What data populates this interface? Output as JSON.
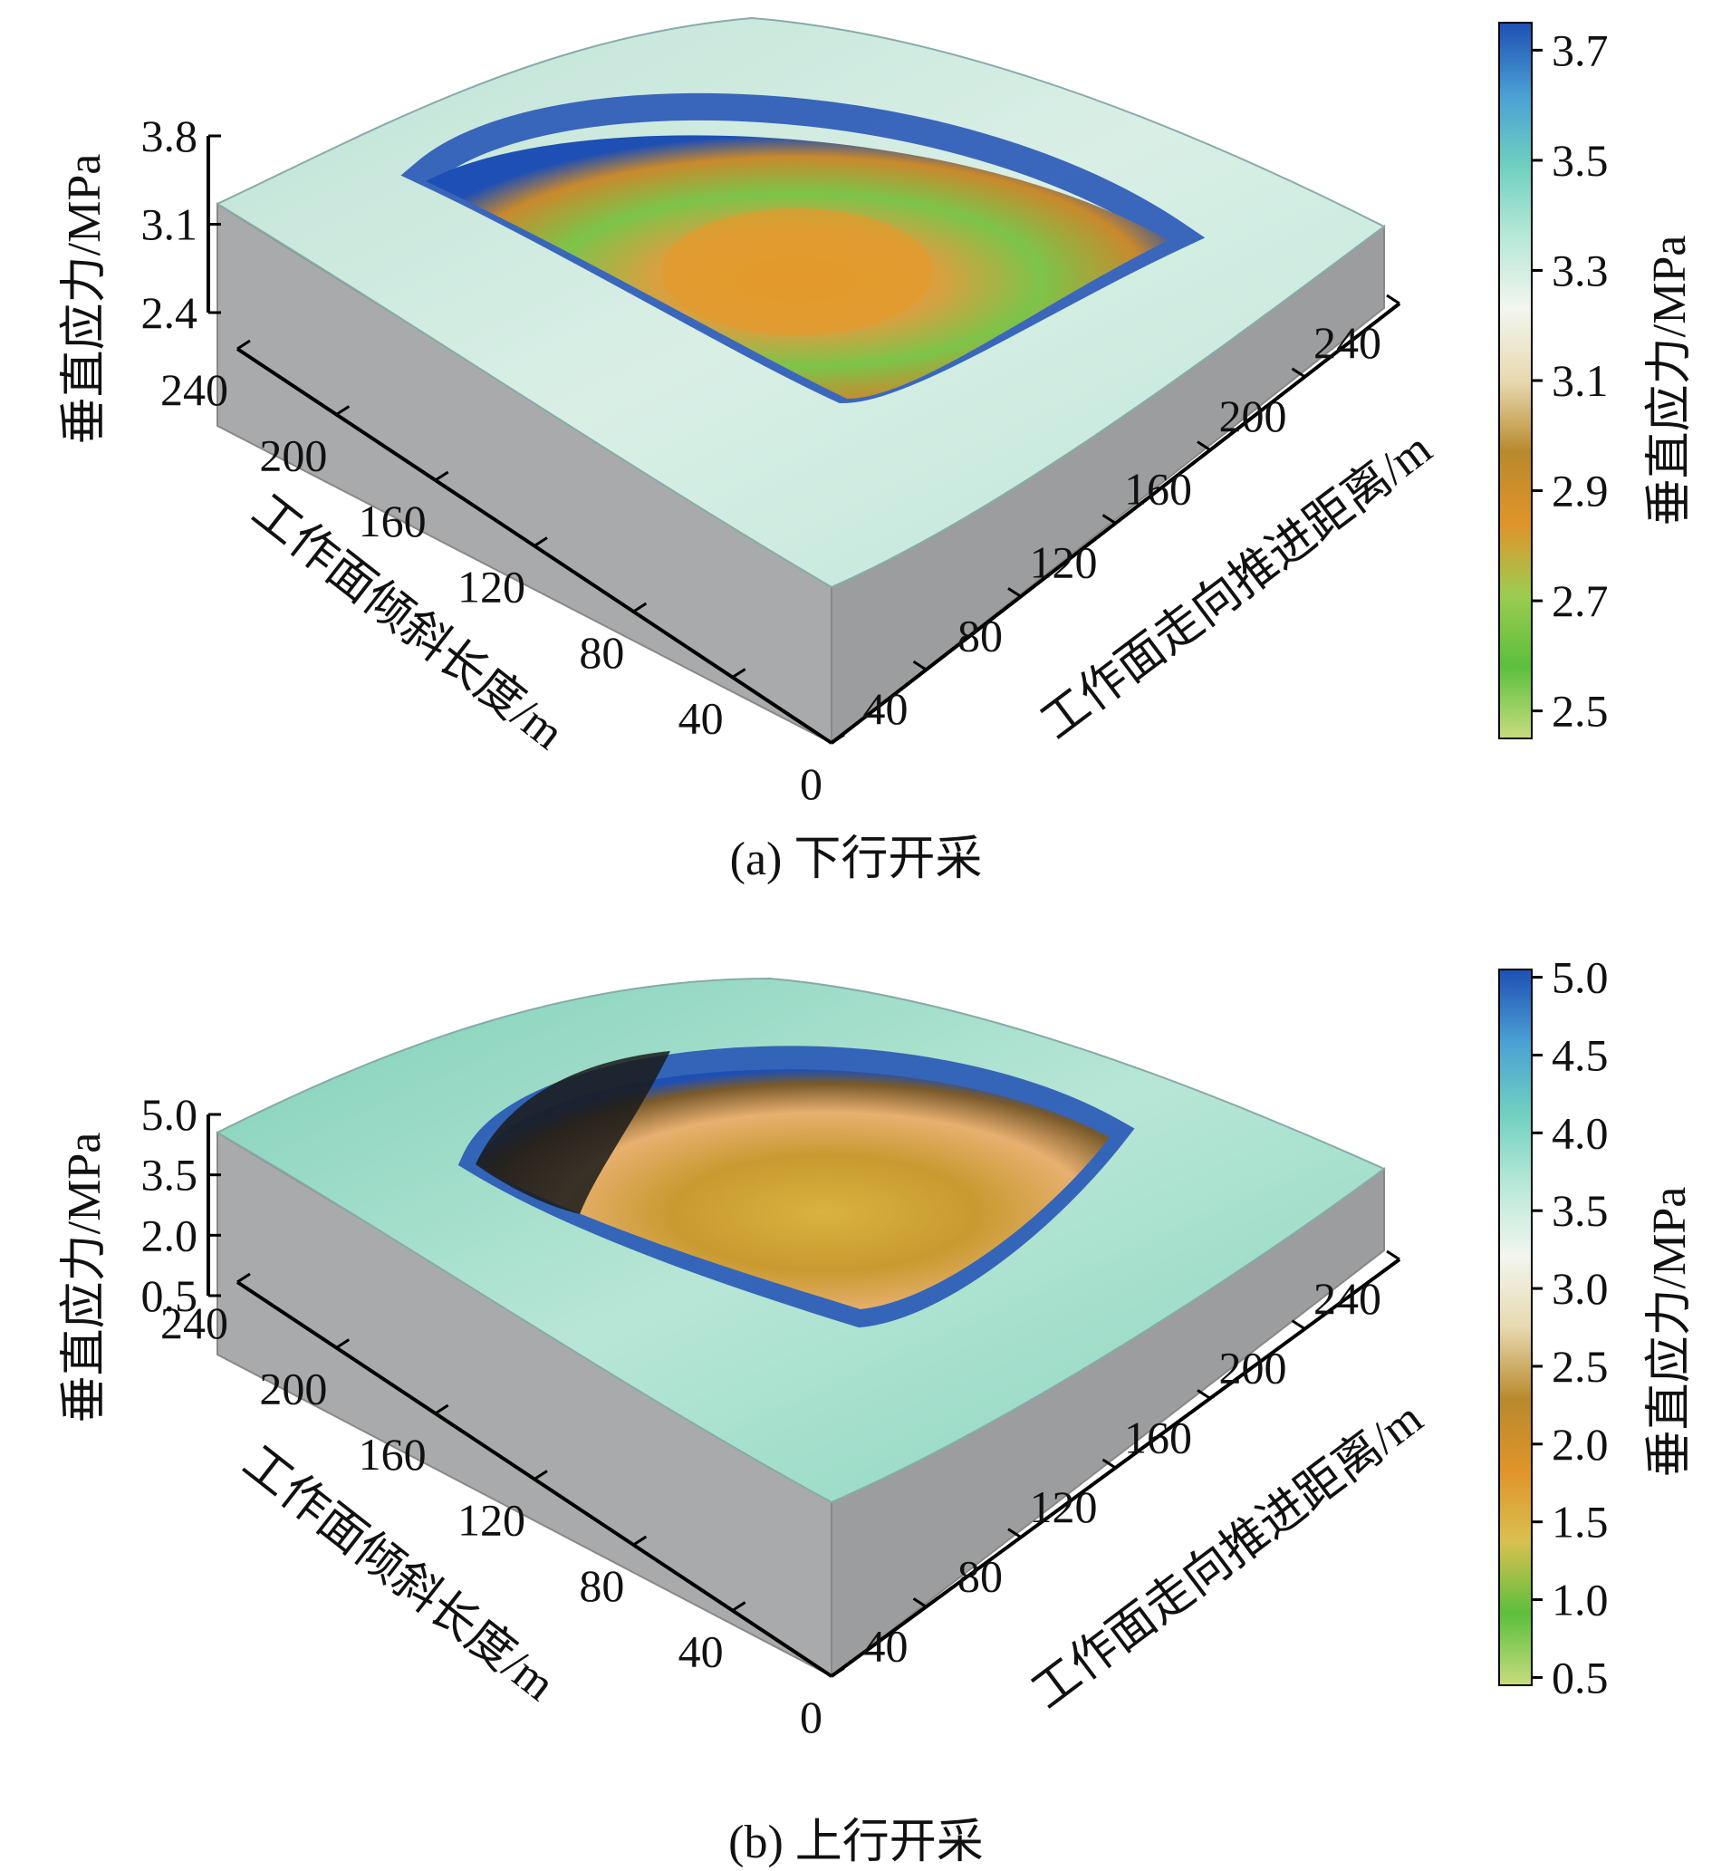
{
  "chart_data": [
    {
      "type": "surface3d",
      "caption": "(a) 下行开采",
      "axis_x": {
        "label": "工作面倾斜长度/m",
        "ticks": [
          "0",
          "40",
          "80",
          "120",
          "160",
          "200",
          "240"
        ]
      },
      "axis_y": {
        "label": "工作面走向推进距离/m",
        "ticks": [
          "40",
          "80",
          "120",
          "160",
          "200",
          "240"
        ]
      },
      "axis_z": {
        "label": "垂直应力/MPa",
        "ticks": [
          "3.8",
          "3.1",
          "2.4"
        ],
        "range": [
          2.4,
          3.8
        ]
      },
      "colorbar": {
        "label": "垂直应力/MPa",
        "ticks": [
          "3.7",
          "3.5",
          "3.3",
          "3.1",
          "2.9",
          "2.7",
          "2.5"
        ],
        "range": [
          2.45,
          3.75
        ],
        "colors": [
          "#1e4fb4",
          "#4a9fd4",
          "#6fd0c0",
          "#b8e8d8",
          "#f2f6ee",
          "#e8d9b0",
          "#b8892c",
          "#e0942a",
          "#9ccc50",
          "#5cbf3c",
          "#c8dc80"
        ]
      }
    },
    {
      "type": "surface3d",
      "caption": "(b) 上行开采",
      "axis_x": {
        "label": "工作面倾斜长度/m",
        "ticks": [
          "0",
          "40",
          "80",
          "120",
          "160",
          "200",
          "240"
        ]
      },
      "axis_y": {
        "label": "工作面走向推进距离/m",
        "ticks": [
          "40",
          "80",
          "120",
          "160",
          "200",
          "240"
        ]
      },
      "axis_z": {
        "label": "垂直应力/MPa",
        "ticks": [
          "5.0",
          "3.5",
          "2.0",
          "0.5"
        ],
        "range": [
          0.5,
          5.0
        ]
      },
      "colorbar": {
        "label": "垂直应力/MPa",
        "ticks": [
          "5.0",
          "4.5",
          "4.0",
          "3.5",
          "3.0",
          "2.5",
          "2.0",
          "1.5",
          "1.0",
          "0.5"
        ],
        "range": [
          0.45,
          5.05
        ],
        "colors": [
          "#1e4fb4",
          "#4a9fd4",
          "#6fd0c0",
          "#b8e8d8",
          "#f2f6ee",
          "#e8d9b0",
          "#b8892c",
          "#e0942a",
          "#d8c050",
          "#5cbf3c",
          "#c8dc80"
        ]
      }
    }
  ]
}
